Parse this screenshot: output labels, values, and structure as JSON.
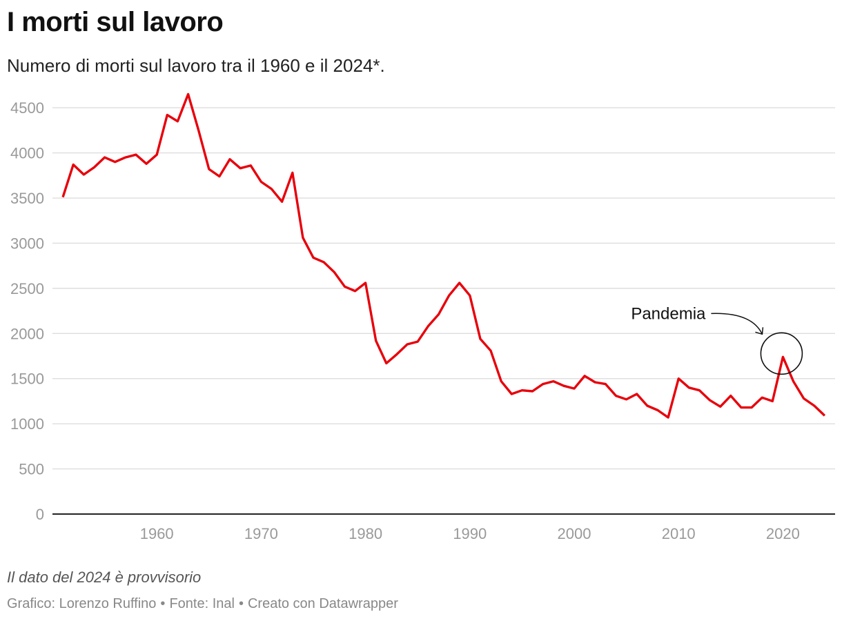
{
  "header": {
    "title": "I morti sul lavoro",
    "subtitle": "Numero di morti sul lavoro tra il 1960 e il 2024*."
  },
  "footer": {
    "note": "Il dato del 2024 è provvisorio",
    "credits": [
      "Grafico: Lorenzo Ruffino",
      "Fonte: Inal",
      "Creato con Datawrapper"
    ],
    "separator": "•"
  },
  "colors": {
    "line": "#e8000b",
    "grid": "#dddddd",
    "axis": "#222222",
    "tick_text": "#999999",
    "annotation": "#111111"
  },
  "chart_data": {
    "type": "line",
    "title": "I morti sul lavoro",
    "subtitle": "Numero di morti sul lavoro tra il 1960 e il 2024*.",
    "xlabel": "",
    "ylabel": "",
    "xlim": [
      1950,
      2025
    ],
    "ylim": [
      0,
      4700
    ],
    "x_ticks": [
      1960,
      1970,
      1980,
      1990,
      2000,
      2010,
      2020
    ],
    "y_ticks": [
      0,
      500,
      1000,
      1500,
      2000,
      2500,
      3000,
      3500,
      4000,
      4500
    ],
    "grid": true,
    "legend": "none",
    "series": [
      {
        "x": [
          1951,
          1952,
          1953,
          1954,
          1955,
          1956,
          1957,
          1958,
          1959,
          1960,
          1961,
          1962,
          1963,
          1964,
          1965,
          1966,
          1967,
          1968,
          1969,
          1970,
          1971,
          1972,
          1973,
          1974,
          1975,
          1976,
          1977,
          1978,
          1979,
          1980,
          1981,
          1982,
          1983,
          1984,
          1985,
          1986,
          1987,
          1988,
          1989,
          1990,
          1991,
          1992,
          1993,
          1994,
          1995,
          1996,
          1997,
          1998,
          1999,
          2000,
          2001,
          2002,
          2003,
          2004,
          2005,
          2006,
          2007,
          2008,
          2009,
          2010,
          2011,
          2012,
          2013,
          2014,
          2015,
          2016,
          2017,
          2018,
          2019,
          2020,
          2021,
          2022,
          2023,
          2024
        ],
        "values": [
          3510,
          3870,
          3760,
          3840,
          3950,
          3900,
          3950,
          3980,
          3880,
          3980,
          4420,
          4350,
          4650,
          4250,
          3820,
          3740,
          3930,
          3830,
          3860,
          3680,
          3600,
          3460,
          3780,
          3060,
          2840,
          2790,
          2680,
          2520,
          2470,
          2560,
          1920,
          1670,
          1770,
          1880,
          1910,
          2080,
          2210,
          2420,
          2560,
          2420,
          1940,
          1810,
          1470,
          1330,
          1370,
          1360,
          1440,
          1470,
          1420,
          1390,
          1530,
          1460,
          1440,
          1310,
          1270,
          1330,
          1200,
          1150,
          1070,
          1500,
          1400,
          1370,
          1260,
          1190,
          1310,
          1180,
          1180,
          1290,
          1250,
          1740,
          1470,
          1280,
          1200,
          1090
        ]
      }
    ],
    "annotations": [
      {
        "text": "Pandemia",
        "x": 2020,
        "y": 1740
      }
    ]
  }
}
